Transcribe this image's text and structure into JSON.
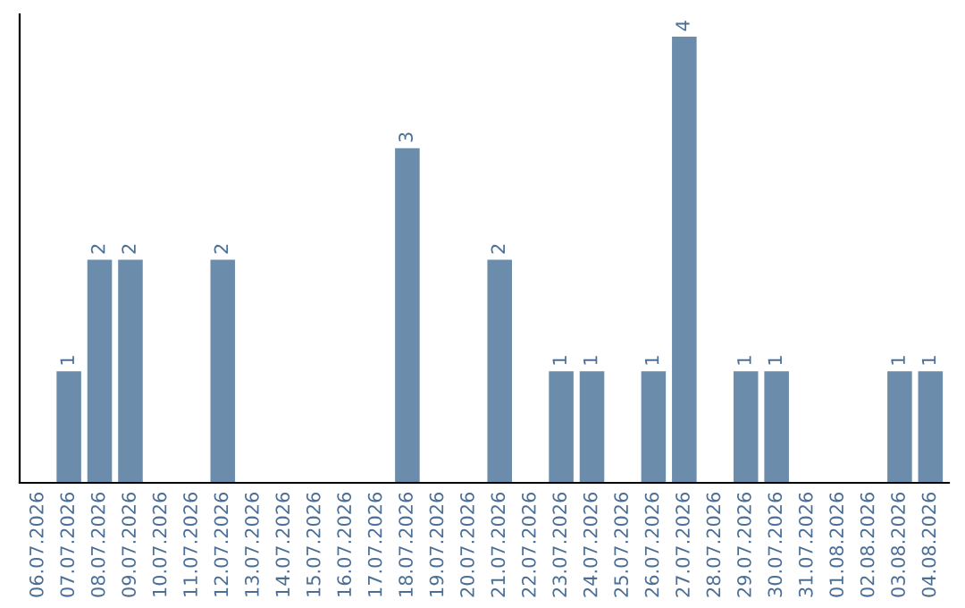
{
  "chart_data": {
    "type": "bar",
    "categories": [
      "06.07.2026",
      "07.07.2026",
      "08.07.2026",
      "09.07.2026",
      "10.07.2026",
      "11.07.2026",
      "12.07.2026",
      "13.07.2026",
      "14.07.2026",
      "15.07.2026",
      "16.07.2026",
      "17.07.2026",
      "18.07.2026",
      "19.07.2026",
      "20.07.2026",
      "21.07.2026",
      "22.07.2026",
      "23.07.2026",
      "24.07.2026",
      "25.07.2026",
      "26.07.2026",
      "27.07.2026",
      "28.07.2026",
      "29.07.2026",
      "30.07.2026",
      "31.07.2026",
      "01.08.2026",
      "02.08.2026",
      "03.08.2026",
      "04.08.2026"
    ],
    "values": [
      0,
      1,
      2,
      2,
      0,
      0,
      2,
      0,
      0,
      0,
      0,
      0,
      3,
      0,
      0,
      2,
      0,
      1,
      1,
      0,
      1,
      4,
      0,
      1,
      1,
      0,
      0,
      0,
      1,
      1
    ],
    "value_labels": [
      null,
      "1",
      "2",
      "2",
      null,
      null,
      "2",
      null,
      null,
      null,
      null,
      null,
      "3",
      null,
      null,
      "2",
      null,
      "1",
      "1",
      null,
      "1",
      "4",
      null,
      "1",
      "1",
      null,
      null,
      null,
      "1",
      "1"
    ],
    "color": "#6b8cab",
    "ylim": [
      0,
      4.2
    ],
    "tick_labels": "x",
    "grid": false,
    "legend": false
  }
}
